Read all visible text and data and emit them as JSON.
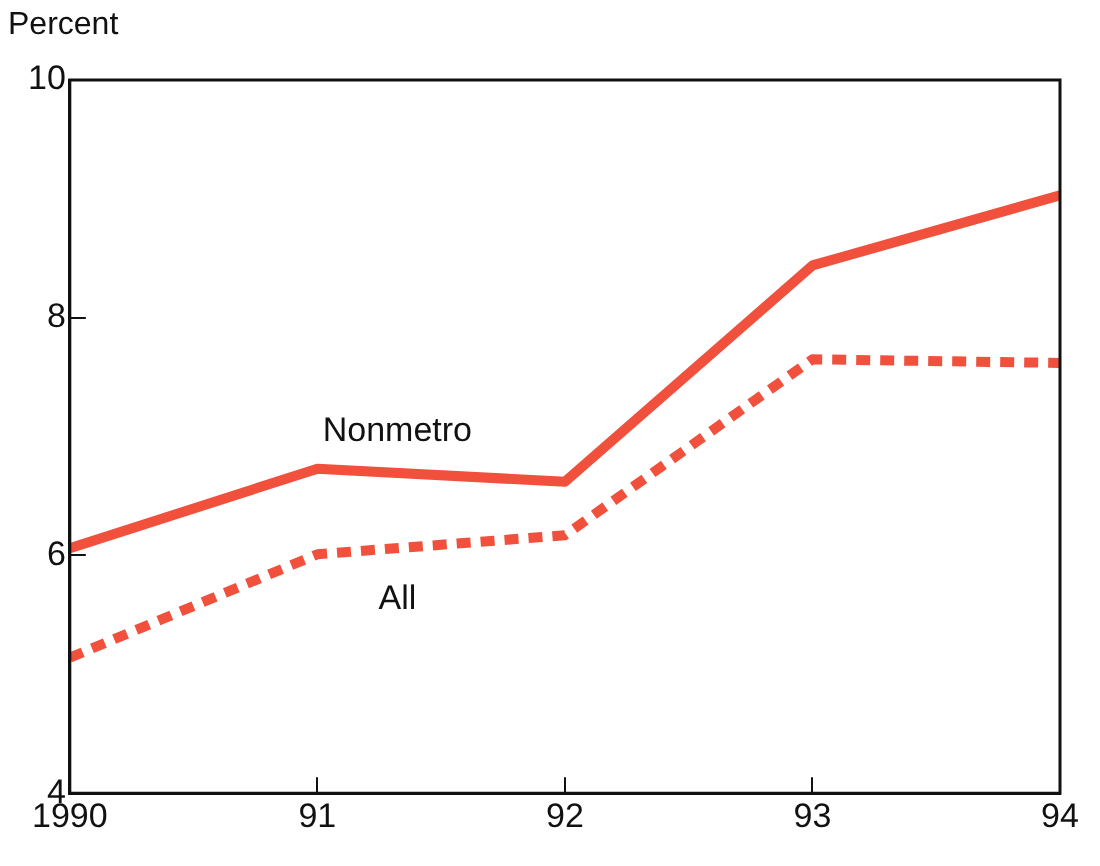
{
  "chart_data": {
    "type": "line",
    "ylabel": "Percent",
    "x": [
      1990,
      1991,
      1992,
      1993,
      1994
    ],
    "xlim": [
      1990,
      1994
    ],
    "xticks": [
      {
        "value": 1990,
        "label": "1990"
      },
      {
        "value": 1991,
        "label": "91"
      },
      {
        "value": 1992,
        "label": "92"
      },
      {
        "value": 1993,
        "label": "93"
      },
      {
        "value": 1994,
        "label": "94"
      }
    ],
    "ylim": [
      4,
      10
    ],
    "yticks": [
      4,
      6,
      8,
      10
    ],
    "grid": false,
    "legend": false,
    "marker": "none",
    "series": [
      {
        "name": "Nonmetro",
        "color": "#f0503c",
        "line_style": "solid",
        "values": [
          6.06,
          6.73,
          6.62,
          8.44,
          9.03
        ]
      },
      {
        "name": "All",
        "color": "#f0503c",
        "line_style": "dotted",
        "values": [
          5.14,
          6.01,
          6.17,
          7.65,
          7.62
        ]
      }
    ]
  }
}
